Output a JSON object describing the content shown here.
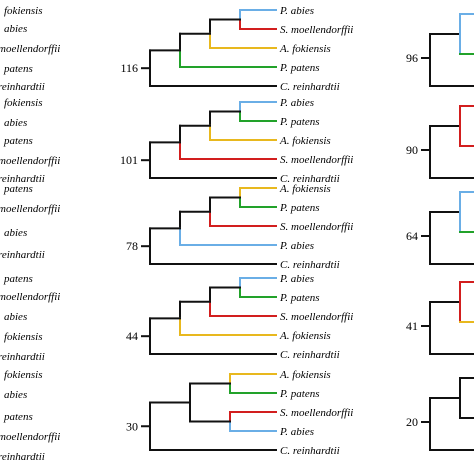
{
  "figure": {
    "type": "tree-comparison-panels",
    "colors": {
      "black": "#111111",
      "blue": "#6aaee6",
      "red": "#d21e1e",
      "orange": "#e8b81e",
      "green": "#22a22a"
    },
    "left_column": [
      {
        "labels": [
          "fokiensis",
          "abies",
          "moellendorffii",
          "patens",
          "reinhardtii"
        ]
      },
      {
        "labels": [
          "fokiensis",
          "abies",
          "patens",
          "moellendorffii",
          "reinhardtii"
        ]
      },
      {
        "labels": [
          "patens",
          "moellendorffii",
          "abies",
          "reinhardtii"
        ]
      },
      {
        "labels": [
          "patens",
          "moellendorffii",
          "abies",
          "fokiensis",
          "reinhardtii"
        ]
      },
      {
        "labels": [
          "fokiensis",
          "abies",
          "patens",
          "moellendorffii",
          "reinhardtii"
        ]
      }
    ],
    "middle_column": [
      {
        "count": "116",
        "leaves": [
          {
            "name": "P. abies",
            "color": "blue"
          },
          {
            "name": "S. moellendorffii",
            "color": "red"
          },
          {
            "name": "A. fokiensis",
            "color": "orange"
          },
          {
            "name": "P. patens",
            "color": "green"
          },
          {
            "name": "C. reinhardtii",
            "color": "black"
          }
        ]
      },
      {
        "count": "101",
        "leaves": [
          {
            "name": "P. abies",
            "color": "blue"
          },
          {
            "name": "P. patens",
            "color": "green"
          },
          {
            "name": "A. fokiensis",
            "color": "orange"
          },
          {
            "name": "S. moellendorffii",
            "color": "red"
          },
          {
            "name": "C. reinhardtii",
            "color": "black"
          }
        ]
      },
      {
        "count": "78",
        "leaves": [
          {
            "name": "A. fokiensis",
            "color": "orange"
          },
          {
            "name": "P. patens",
            "color": "green"
          },
          {
            "name": "S. moellendorffii",
            "color": "red"
          },
          {
            "name": "P. abies",
            "color": "blue"
          },
          {
            "name": "C. reinhardtii",
            "color": "black"
          }
        ]
      },
      {
        "count": "44",
        "leaves": [
          {
            "name": "P. abies",
            "color": "blue"
          },
          {
            "name": "P. patens",
            "color": "green"
          },
          {
            "name": "S. moellendorffii",
            "color": "red"
          },
          {
            "name": "A. fokiensis",
            "color": "orange"
          },
          {
            "name": "C. reinhardtii",
            "color": "black"
          }
        ]
      },
      {
        "count": "30",
        "leaves": [
          {
            "name": "A. fokiensis",
            "color": "orange"
          },
          {
            "name": "P. patens",
            "color": "green"
          },
          {
            "name": "S. moellendorffii",
            "color": "red"
          },
          {
            "name": "P. abies",
            "color": "blue"
          },
          {
            "name": "C. reinhardtii",
            "color": "black"
          }
        ]
      }
    ],
    "right_column_counts": [
      "96",
      "90",
      "64",
      "41",
      "20"
    ]
  }
}
